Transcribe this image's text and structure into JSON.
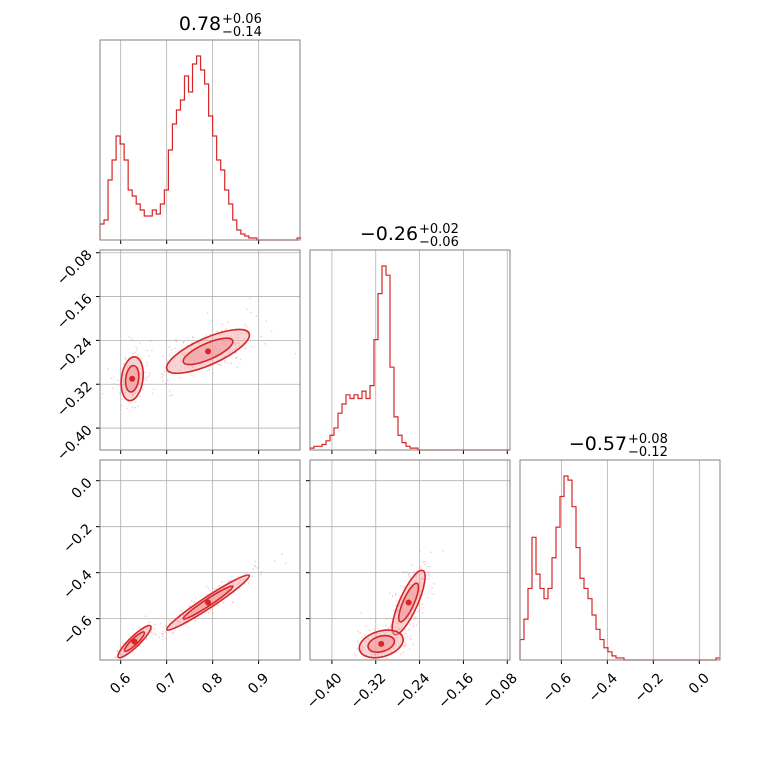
{
  "colors": {
    "series": "#d62728",
    "fill": "#f2a0a4",
    "grid": "#b0b0b0",
    "frame": "#808080"
  },
  "chart_data": {
    "type": "corner",
    "parameter_labels": [
      "",
      "",
      ""
    ],
    "titles": [
      {
        "median": "0.78",
        "plus": "+0.06",
        "minus": "−0.14"
      },
      {
        "median": "−0.26",
        "plus": "+0.02",
        "minus": "−0.06"
      },
      {
        "median": "−0.57",
        "plus": "+0.08",
        "minus": "−0.12"
      }
    ],
    "ranges": [
      [
        0.555,
        0.99
      ],
      [
        -0.44,
        -0.075
      ],
      [
        -0.78,
        0.09
      ]
    ],
    "ticks": [
      {
        "values": [
          0.6,
          0.7,
          0.8,
          0.9
        ],
        "labels": [
          "0.6",
          "0.7",
          "0.8",
          "0.9"
        ]
      },
      {
        "values": [
          -0.4,
          -0.32,
          -0.24,
          -0.16,
          -0.08
        ],
        "labels": [
          "−0.40",
          "−0.32",
          "−0.24",
          "−0.16",
          "−0.08"
        ]
      },
      {
        "values": [
          -0.6,
          -0.4,
          -0.2,
          0.0
        ],
        "labels": [
          "−0.6",
          "−0.4",
          "−0.2",
          "0.0"
        ]
      }
    ],
    "histograms": [
      {
        "param": 0,
        "bin_edges_start": 0.555,
        "bin_width": 0.00875,
        "counts": [
          0.08,
          0.1,
          0.3,
          0.4,
          0.52,
          0.48,
          0.4,
          0.25,
          0.22,
          0.18,
          0.15,
          0.12,
          0.12,
          0.15,
          0.13,
          0.18,
          0.25,
          0.45,
          0.58,
          0.65,
          0.7,
          0.82,
          0.74,
          0.88,
          0.92,
          0.85,
          0.78,
          0.62,
          0.52,
          0.4,
          0.35,
          0.25,
          0.18,
          0.1,
          0.05,
          0.03,
          0.02,
          0.01,
          0.01,
          0.0,
          0.0,
          0.0,
          0.0,
          0.0,
          0.0,
          0.0,
          0.0,
          0.0,
          0.0,
          0.01
        ]
      },
      {
        "param": 1,
        "bin_edges_start": -0.44,
        "bin_width": 0.0073,
        "counts": [
          0.01,
          0.02,
          0.02,
          0.03,
          0.05,
          0.08,
          0.12,
          0.2,
          0.25,
          0.3,
          0.28,
          0.3,
          0.28,
          0.32,
          0.28,
          0.35,
          0.6,
          0.85,
          1.0,
          0.95,
          0.45,
          0.18,
          0.08,
          0.04,
          0.02,
          0.01,
          0.01,
          0.0,
          0.0,
          0.0,
          0.0,
          0.0,
          0.0,
          0.0,
          0.0,
          0.0,
          0.0,
          0.0,
          0.0,
          0.0,
          0.0,
          0.0,
          0.0,
          0.0,
          0.0,
          0.0,
          0.0,
          0.0,
          0.0,
          0.0
        ]
      },
      {
        "param": 2,
        "bin_edges_start": -0.78,
        "bin_width": 0.0174,
        "counts": [
          0.1,
          0.2,
          0.35,
          0.6,
          0.42,
          0.35,
          0.3,
          0.35,
          0.5,
          0.65,
          0.8,
          0.9,
          0.88,
          0.75,
          0.55,
          0.4,
          0.35,
          0.3,
          0.22,
          0.15,
          0.1,
          0.06,
          0.04,
          0.02,
          0.01,
          0.01,
          0.0,
          0.0,
          0.0,
          0.0,
          0.0,
          0.0,
          0.0,
          0.0,
          0.0,
          0.0,
          0.0,
          0.0,
          0.0,
          0.0,
          0.0,
          0.0,
          0.0,
          0.0,
          0.0,
          0.0,
          0.0,
          0.0,
          0.0,
          0.01
        ]
      }
    ],
    "density_2d": [
      {
        "x_param": 0,
        "y_param": 1,
        "modes": [
          {
            "x": 0.79,
            "y": -0.26,
            "sx": 0.045,
            "sy": 0.02,
            "rho": 0.75,
            "weight": 1.0
          },
          {
            "x": 0.625,
            "y": -0.31,
            "sx": 0.012,
            "sy": 0.02,
            "rho": 0.2,
            "weight": 0.55
          }
        ]
      },
      {
        "x_param": 0,
        "y_param": 2,
        "modes": [
          {
            "x": 0.79,
            "y": -0.53,
            "sx": 0.045,
            "sy": 0.06,
            "rho": 0.97,
            "weight": 1.0
          },
          {
            "x": 0.63,
            "y": -0.7,
            "sx": 0.018,
            "sy": 0.035,
            "rho": 0.9,
            "weight": 0.5
          }
        ]
      },
      {
        "x_param": 1,
        "y_param": 2,
        "modes": [
          {
            "x": -0.26,
            "y": -0.53,
            "sx": 0.015,
            "sy": 0.07,
            "rho": 0.8,
            "weight": 1.0
          },
          {
            "x": -0.31,
            "y": -0.71,
            "sx": 0.02,
            "sy": 0.03,
            "rho": 0.3,
            "weight": 0.5
          }
        ]
      }
    ]
  }
}
